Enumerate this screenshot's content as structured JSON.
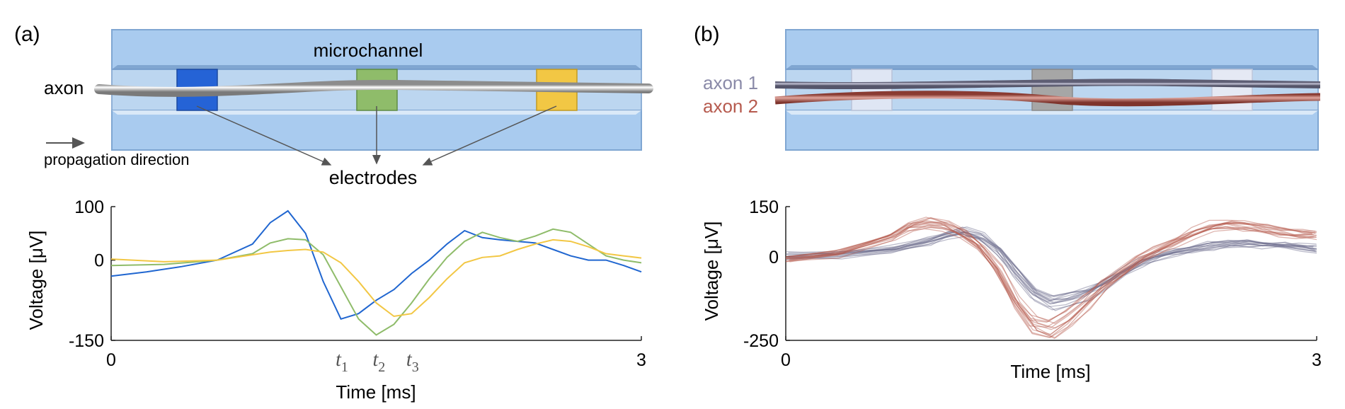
{
  "panel_a": {
    "label": "(a)",
    "channel_label": "microchannel",
    "axon_label": "axon",
    "direction_label": "propagation direction",
    "electrodes_label": "electrodes",
    "electrode_colors": [
      "#2563d6",
      "#8fbc6a",
      "#f2c744"
    ]
  },
  "panel_b": {
    "label": "(b)",
    "axon1_label": "axon 1",
    "axon2_label": "axon 2",
    "axon1_color": "#8a8aa8",
    "axon2_color": "#b65a4e"
  },
  "chart_data": [
    {
      "type": "line",
      "xlabel": "Time [ms]",
      "ylabel": "Voltage [μV]",
      "xlim": [
        0,
        3
      ],
      "ylim": [
        -150,
        100
      ],
      "x_ticks": [
        "0",
        "3"
      ],
      "y_ticks": [
        "100",
        "0",
        "-150"
      ],
      "time_markers": [
        {
          "label": "t",
          "sub": "1",
          "x": 1.31
        },
        {
          "label": "t",
          "sub": "2",
          "x": 1.52
        },
        {
          "label": "t",
          "sub": "3",
          "x": 1.71
        }
      ],
      "series": [
        {
          "color": "#2066d0",
          "x": [
            0,
            0.2,
            0.4,
            0.6,
            0.8,
            0.9,
            1.0,
            1.1,
            1.2,
            1.3,
            1.4,
            1.5,
            1.6,
            1.7,
            1.8,
            1.9,
            2.0,
            2.1,
            2.2,
            2.3,
            2.4,
            2.5,
            2.6,
            2.7,
            2.8,
            2.9,
            3.0
          ],
          "y": [
            -30,
            -22,
            -12,
            0,
            30,
            70,
            92,
            50,
            -40,
            -110,
            -100,
            -75,
            -55,
            -25,
            0,
            30,
            55,
            42,
            38,
            35,
            32,
            20,
            8,
            0,
            0,
            -10,
            -22
          ]
        },
        {
          "color": "#8fbc6a",
          "x": [
            0,
            0.3,
            0.6,
            0.8,
            0.9,
            1.0,
            1.1,
            1.2,
            1.3,
            1.4,
            1.5,
            1.6,
            1.7,
            1.8,
            1.9,
            2.0,
            2.1,
            2.2,
            2.3,
            2.4,
            2.5,
            2.6,
            2.7,
            2.8,
            2.9,
            3.0
          ],
          "y": [
            -10,
            -8,
            0,
            12,
            32,
            40,
            38,
            10,
            -50,
            -110,
            -140,
            -120,
            -80,
            -35,
            5,
            35,
            52,
            42,
            35,
            45,
            58,
            52,
            30,
            8,
            0,
            -5
          ]
        },
        {
          "color": "#f2c744",
          "x": [
            0,
            0.3,
            0.6,
            0.9,
            1.0,
            1.1,
            1.2,
            1.3,
            1.4,
            1.5,
            1.6,
            1.7,
            1.8,
            1.9,
            2.0,
            2.1,
            2.2,
            2.3,
            2.4,
            2.5,
            2.6,
            2.7,
            2.8,
            2.9,
            3.0
          ],
          "y": [
            2,
            -3,
            0,
            15,
            18,
            20,
            15,
            -5,
            -40,
            -80,
            -105,
            -100,
            -70,
            -35,
            -5,
            5,
            8,
            20,
            30,
            38,
            35,
            25,
            12,
            8,
            4
          ]
        }
      ]
    },
    {
      "type": "line",
      "xlabel": "Time [ms]",
      "ylabel": "Voltage [μV]",
      "xlim": [
        0,
        3
      ],
      "ylim": [
        -250,
        150
      ],
      "x_ticks": [
        "0",
        "3"
      ],
      "y_ticks": [
        "150",
        "0",
        "-250"
      ],
      "series": [
        {
          "color": "#6a6a8c",
          "x": [
            0,
            0.3,
            0.6,
            0.8,
            0.9,
            1.0,
            1.1,
            1.2,
            1.3,
            1.4,
            1.5,
            1.6,
            1.7,
            1.8,
            1.9,
            2.0,
            2.1,
            2.2,
            2.3,
            2.4,
            2.5,
            2.6,
            2.7,
            2.8,
            2.9,
            3.0
          ],
          "y": [
            0,
            5,
            20,
            45,
            65,
            75,
            60,
            20,
            -50,
            -110,
            -140,
            -130,
            -110,
            -80,
            -50,
            -20,
            0,
            15,
            25,
            35,
            40,
            40,
            38,
            35,
            30,
            25
          ]
        },
        {
          "color": "#b65a4e",
          "x": [
            0,
            0.3,
            0.6,
            0.7,
            0.8,
            0.9,
            1.0,
            1.1,
            1.2,
            1.3,
            1.4,
            1.5,
            1.6,
            1.7,
            1.8,
            1.9,
            2.0,
            2.1,
            2.2,
            2.3,
            2.4,
            2.5,
            2.6,
            2.7,
            2.8,
            2.9,
            3.0
          ],
          "y": [
            -10,
            10,
            60,
            90,
            105,
            95,
            70,
            30,
            -40,
            -140,
            -210,
            -225,
            -190,
            -140,
            -90,
            -50,
            -10,
            20,
            45,
            70,
            90,
            100,
            95,
            85,
            75,
            70,
            65
          ]
        }
      ]
    }
  ]
}
